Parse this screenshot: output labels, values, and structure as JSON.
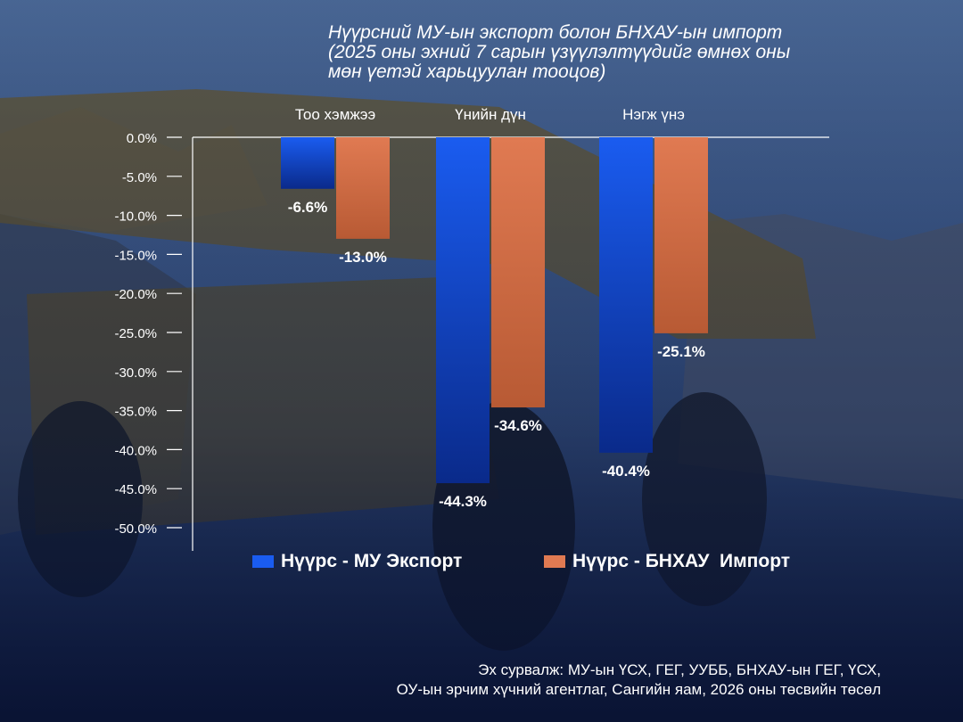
{
  "title_lines": [
    "Нүүрсний МУ-ын экспорт болон БНХАУ-ын импорт",
    "(2025 оны эхний 7 сарын үзүүлэлтүүдийг өмнөх оны",
    "мөн үетэй харьцуулан тооцов)"
  ],
  "source_lines": [
    "Эх сурвалж: МУ-ын ҮСХ, ГЕГ, УУББ, БНХАУ-ын ГЕГ, ҮСХ,",
    "ОУ-ын эрчим хүчний агентлаг, Сангийн яам, 2026 оны төсвийн төсөл"
  ],
  "colors": {
    "export_top": "#1a5cf0",
    "export_bottom": "#0a2a8a",
    "import_top": "#e07a52",
    "import_bottom": "#b85a34",
    "text": "#ffffff"
  },
  "chart_data": {
    "type": "bar",
    "categories": [
      "Тоо хэмжээ",
      "Үнийн дүн",
      "Нэгж үнэ"
    ],
    "series": [
      {
        "name": "Нүүрс - МУ Экспорт",
        "values": [
          -6.6,
          -44.3,
          -40.4
        ],
        "labels": [
          "-6.6%",
          "-44.3%",
          "-40.4%"
        ]
      },
      {
        "name": "Нүүрс - БНХАУ  Импорт",
        "values": [
          -13.0,
          -34.6,
          -25.1
        ],
        "labels": [
          "-13.0%",
          "-34.6%",
          "-25.1%"
        ]
      }
    ],
    "yticks": [
      "0.0%",
      "-5.0%",
      "-10.0%",
      "-15.0%",
      "-20.0%",
      "-25.0%",
      "-30.0%",
      "-35.0%",
      "-40.0%",
      "-45.0%",
      "-50.0%"
    ],
    "ylim": [
      -50,
      0
    ],
    "category_axis_position": "top",
    "legend_position": "bottom",
    "grid": false
  }
}
